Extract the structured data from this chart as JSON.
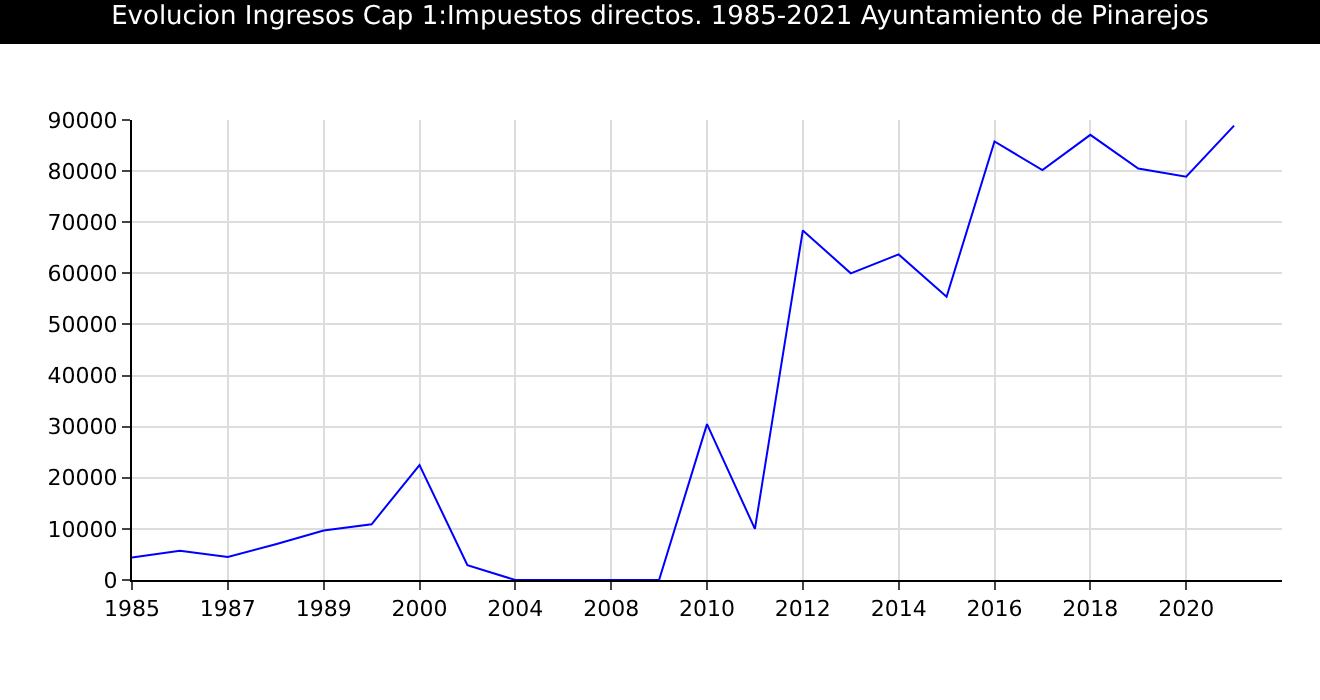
{
  "chart_data": {
    "type": "line",
    "title": "Evolucion Ingresos Cap 1:Impuestos directos. 1985-2021 Ayuntamiento de Pinarejos",
    "categories": [
      "1985",
      null,
      "1987",
      null,
      "1989",
      null,
      "2000",
      null,
      "2004",
      null,
      "2008",
      null,
      "2010",
      null,
      "2012",
      null,
      "2014",
      null,
      "2016",
      null,
      "2018",
      null,
      "2020",
      null
    ],
    "series": [
      {
        "color": "#0000ff",
        "values": [
          4400,
          5700,
          4500,
          7000,
          9700,
          10900,
          22500,
          2900,
          0,
          0,
          0,
          0,
          30500,
          10000,
          68400,
          60000,
          63700,
          55400,
          85800,
          80200,
          87100,
          80500,
          78900,
          88900
        ]
      }
    ],
    "ylim": [
      0,
      90000
    ],
    "yticks": [
      0,
      10000,
      20000,
      30000,
      40000,
      50000,
      60000,
      70000,
      80000,
      90000
    ],
    "grid": true,
    "legend": false,
    "marker": "none",
    "line_style": "solid"
  }
}
